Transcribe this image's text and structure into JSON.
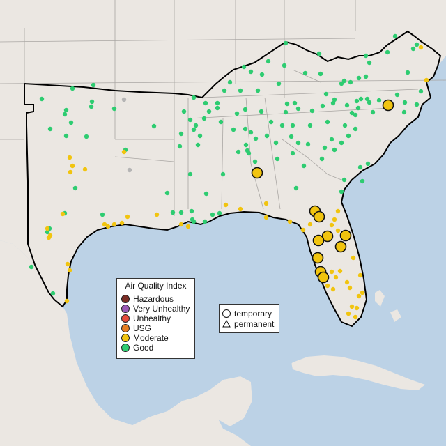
{
  "map": {
    "colors": {
      "land": "#ebe7e2",
      "water": "#bcd2e6",
      "state_border": "#a9a6a3",
      "region_outline": "#000000",
      "good": "#2ecc71",
      "moderate": "#f1c40f",
      "usg": "#e67e22",
      "unhealthy": "#e74c3c",
      "very_unhealthy": "#9b59b6",
      "hazardous": "#7b2d26",
      "offline": "#b5b5b5"
    }
  },
  "aqi_legend": {
    "title": "Air Quality Index",
    "items": [
      {
        "label": "Hazardous",
        "color": "#7b2d26"
      },
      {
        "label": "Very Unhealthy",
        "color": "#9b59b6"
      },
      {
        "label": "Unhealthy",
        "color": "#e74c3c"
      },
      {
        "label": "USG",
        "color": "#e67e22"
      },
      {
        "label": "Moderate",
        "color": "#f1c40f"
      },
      {
        "label": "Good",
        "color": "#2ecc71"
      }
    ]
  },
  "shape_legend": {
    "items": [
      {
        "label": "temporary",
        "shape": "circle"
      },
      {
        "label": "permanent",
        "shape": "triangle"
      }
    ]
  }
}
